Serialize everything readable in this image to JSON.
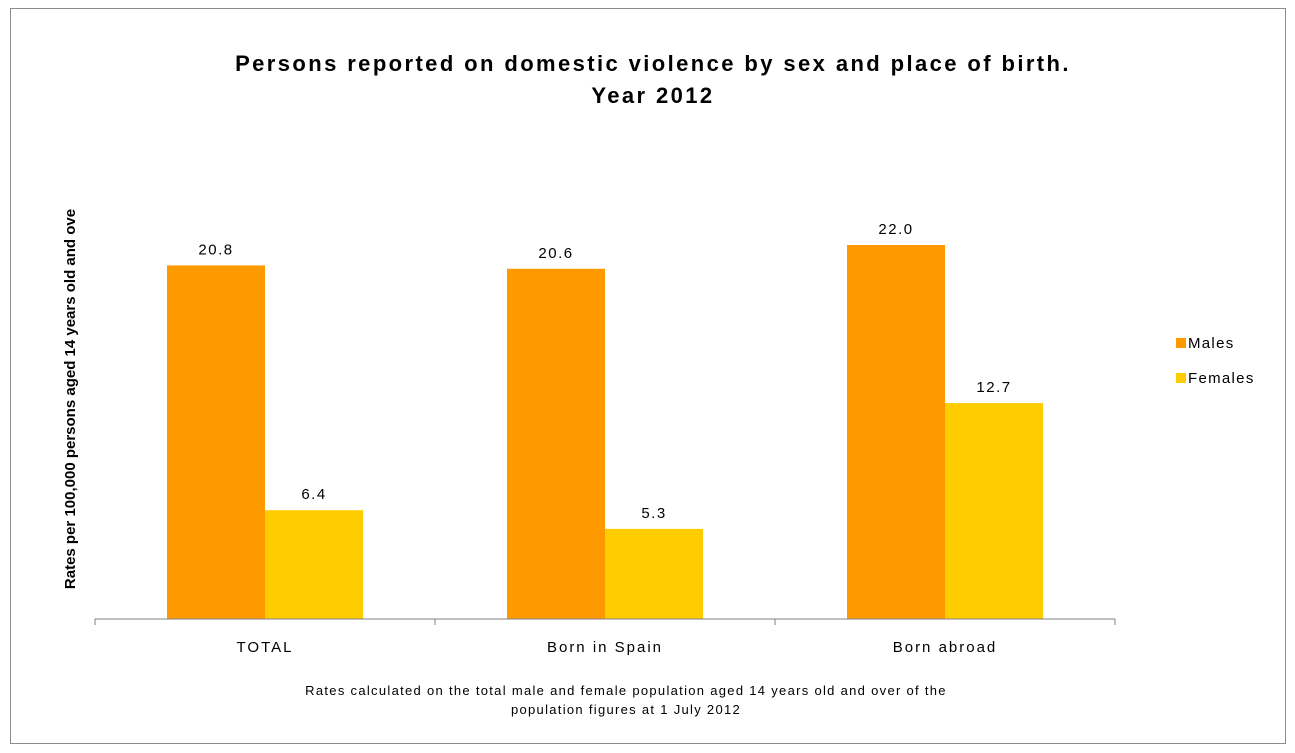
{
  "chart_data": {
    "type": "bar",
    "title": [
      "Persons reported on domestic violence by sex and place of birth.",
      "Year 2012"
    ],
    "ylabel": "Rates per 100,000 persons aged 14 years old and ove",
    "xlabel": "",
    "categories": [
      "TOTAL",
      "Born in Spain",
      "Born abroad"
    ],
    "series": [
      {
        "name": "Males",
        "values": [
          20.8,
          20.6,
          22.0
        ],
        "color": "#FF9900",
        "labels": [
          "20.8",
          "20.6",
          "22.0"
        ]
      },
      {
        "name": "Females",
        "values": [
          6.4,
          5.3,
          12.7
        ],
        "color": "#FFCC00",
        "labels": [
          "6.4",
          "5.3",
          "12.7"
        ]
      }
    ],
    "ylim": [
      0,
      28
    ],
    "grid": false,
    "legend_position": "right",
    "note": [
      "Rates calculated on the total male and female population aged 14 years old and over of the",
      "population figures at 1 July 2012"
    ]
  }
}
